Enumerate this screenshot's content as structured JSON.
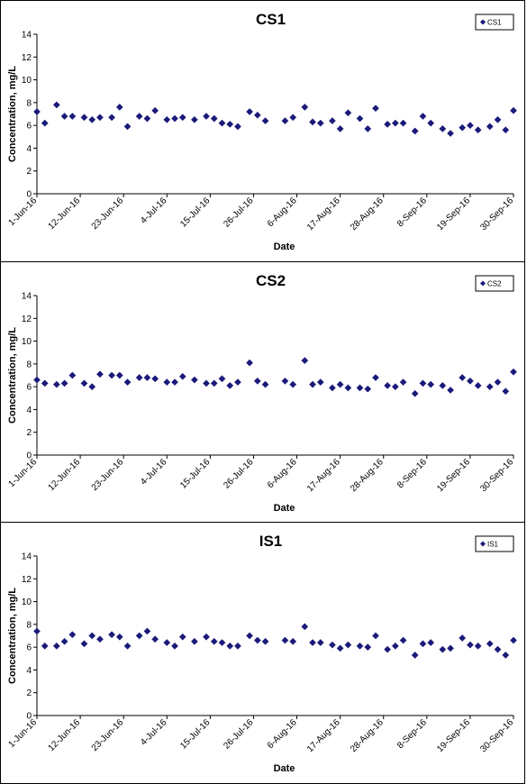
{
  "chart_data": [
    {
      "type": "scatter",
      "title": "CS1",
      "xlabel": "Date",
      "ylabel": "Concentration, mg/L",
      "ylim": [
        0,
        14
      ],
      "yticks": [
        0,
        2,
        4,
        6,
        8,
        10,
        12,
        14
      ],
      "xlim": [
        "2016-06-01",
        "2016-09-30"
      ],
      "xticks": [
        "1-Jun-16",
        "12-Jun-16",
        "23-Jun-16",
        "4-Jul-16",
        "15-Jul-16",
        "26-Jul-16",
        "6-Aug-16",
        "17-Aug-16",
        "28-Aug-16",
        "8-Sep-16",
        "19-Sep-16",
        "30-Sep-16"
      ],
      "grid": false,
      "legend": "top-right",
      "color": "#1a1a7a",
      "series": [
        {
          "name": "CS1",
          "x": [
            "2016-06-01",
            "2016-06-03",
            "2016-06-06",
            "2016-06-08",
            "2016-06-10",
            "2016-06-13",
            "2016-06-15",
            "2016-06-17",
            "2016-06-20",
            "2016-06-22",
            "2016-06-24",
            "2016-06-27",
            "2016-06-29",
            "2016-07-01",
            "2016-07-04",
            "2016-07-06",
            "2016-07-08",
            "2016-07-11",
            "2016-07-14",
            "2016-07-16",
            "2016-07-18",
            "2016-07-20",
            "2016-07-22",
            "2016-07-25",
            "2016-07-27",
            "2016-07-29",
            "2016-08-03",
            "2016-08-05",
            "2016-08-08",
            "2016-08-10",
            "2016-08-12",
            "2016-08-15",
            "2016-08-17",
            "2016-08-19",
            "2016-08-22",
            "2016-08-24",
            "2016-08-26",
            "2016-08-29",
            "2016-08-31",
            "2016-09-02",
            "2016-09-05",
            "2016-09-07",
            "2016-09-09",
            "2016-09-12",
            "2016-09-14",
            "2016-09-17",
            "2016-09-19",
            "2016-09-21",
            "2016-09-24",
            "2016-09-26",
            "2016-09-28",
            "2016-09-30"
          ],
          "y": [
            7.2,
            6.2,
            7.8,
            6.8,
            6.8,
            6.7,
            6.5,
            6.7,
            6.7,
            7.6,
            5.9,
            6.8,
            6.6,
            7.3,
            6.5,
            6.6,
            6.7,
            6.5,
            6.8,
            6.6,
            6.2,
            6.1,
            5.9,
            7.2,
            6.9,
            6.4,
            6.4,
            6.7,
            7.6,
            6.3,
            6.2,
            6.4,
            5.7,
            7.1,
            6.6,
            5.7,
            7.5,
            6.1,
            6.2,
            6.2,
            5.5,
            6.8,
            6.2,
            5.7,
            5.3,
            5.8,
            6.0,
            5.6,
            5.9,
            6.5,
            5.6,
            7.3
          ]
        }
      ]
    },
    {
      "type": "scatter",
      "title": "CS2",
      "xlabel": "Date",
      "ylabel": "Concentration, mg/L",
      "ylim": [
        0,
        14
      ],
      "yticks": [
        0,
        2,
        4,
        6,
        8,
        10,
        12,
        14
      ],
      "xlim": [
        "2016-06-01",
        "2016-09-30"
      ],
      "xticks": [
        "1-Jun-16",
        "12-Jun-16",
        "23-Jun-16",
        "4-Jul-16",
        "15-Jul-16",
        "26-Jul-16",
        "6-Aug-16",
        "17-Aug-16",
        "28-Aug-16",
        "8-Sep-16",
        "19-Sep-16",
        "30-Sep-16"
      ],
      "grid": false,
      "legend": "top-right",
      "color": "#1a1a7a",
      "series": [
        {
          "name": "CS2",
          "x": [
            "2016-06-01",
            "2016-06-03",
            "2016-06-06",
            "2016-06-08",
            "2016-06-10",
            "2016-06-13",
            "2016-06-15",
            "2016-06-17",
            "2016-06-20",
            "2016-06-22",
            "2016-06-24",
            "2016-06-27",
            "2016-06-29",
            "2016-07-01",
            "2016-07-04",
            "2016-07-06",
            "2016-07-08",
            "2016-07-11",
            "2016-07-14",
            "2016-07-16",
            "2016-07-18",
            "2016-07-20",
            "2016-07-22",
            "2016-07-25",
            "2016-07-27",
            "2016-07-29",
            "2016-08-03",
            "2016-08-05",
            "2016-08-08",
            "2016-08-10",
            "2016-08-12",
            "2016-08-15",
            "2016-08-17",
            "2016-08-19",
            "2016-08-22",
            "2016-08-24",
            "2016-08-26",
            "2016-08-29",
            "2016-08-31",
            "2016-09-02",
            "2016-09-05",
            "2016-09-07",
            "2016-09-09",
            "2016-09-12",
            "2016-09-14",
            "2016-09-17",
            "2016-09-19",
            "2016-09-21",
            "2016-09-24",
            "2016-09-26",
            "2016-09-28",
            "2016-09-30"
          ],
          "y": [
            6.6,
            6.3,
            6.2,
            6.3,
            7.0,
            6.3,
            6.0,
            7.1,
            7.0,
            7.0,
            6.4,
            6.8,
            6.8,
            6.7,
            6.4,
            6.4,
            6.9,
            6.6,
            6.3,
            6.3,
            6.7,
            6.1,
            6.4,
            8.1,
            6.5,
            6.2,
            6.5,
            6.2,
            8.3,
            6.2,
            6.4,
            5.9,
            6.2,
            5.9,
            5.9,
            5.8,
            6.8,
            6.1,
            6.0,
            6.4,
            5.4,
            6.3,
            6.2,
            6.1,
            5.7,
            6.8,
            6.5,
            6.1,
            6.0,
            6.4,
            5.6,
            7.3
          ]
        }
      ]
    },
    {
      "type": "scatter",
      "title": "IS1",
      "xlabel": "Date",
      "ylabel": "Concentration, mg/L",
      "ylim": [
        0,
        14
      ],
      "yticks": [
        0,
        2,
        4,
        6,
        8,
        10,
        12,
        14
      ],
      "xlim": [
        "2016-06-01",
        "2016-09-30"
      ],
      "xticks": [
        "1-Jun-16",
        "12-Jun-16",
        "23-Jun-16",
        "4-Jul-16",
        "15-Jul-16",
        "26-Jul-16",
        "6-Aug-16",
        "17-Aug-16",
        "28-Aug-16",
        "8-Sep-16",
        "19-Sep-16",
        "30-Sep-16"
      ],
      "grid": false,
      "legend": "top-right",
      "color": "#1a1a7a",
      "series": [
        {
          "name": "IS1",
          "x": [
            "2016-06-01",
            "2016-06-03",
            "2016-06-06",
            "2016-06-08",
            "2016-06-10",
            "2016-06-13",
            "2016-06-15",
            "2016-06-17",
            "2016-06-20",
            "2016-06-22",
            "2016-06-24",
            "2016-06-27",
            "2016-06-29",
            "2016-07-01",
            "2016-07-04",
            "2016-07-06",
            "2016-07-08",
            "2016-07-11",
            "2016-07-14",
            "2016-07-16",
            "2016-07-18",
            "2016-07-20",
            "2016-07-22",
            "2016-07-25",
            "2016-07-27",
            "2016-07-29",
            "2016-08-03",
            "2016-08-05",
            "2016-08-08",
            "2016-08-10",
            "2016-08-12",
            "2016-08-15",
            "2016-08-17",
            "2016-08-19",
            "2016-08-22",
            "2016-08-24",
            "2016-08-26",
            "2016-08-29",
            "2016-08-31",
            "2016-09-02",
            "2016-09-05",
            "2016-09-07",
            "2016-09-09",
            "2016-09-12",
            "2016-09-14",
            "2016-09-17",
            "2016-09-19",
            "2016-09-21",
            "2016-09-24",
            "2016-09-26",
            "2016-09-28",
            "2016-09-30"
          ],
          "y": [
            7.4,
            6.1,
            6.1,
            6.5,
            7.1,
            6.3,
            7.0,
            6.7,
            7.1,
            6.9,
            6.1,
            7.0,
            7.4,
            6.7,
            6.4,
            6.1,
            6.9,
            6.5,
            6.9,
            6.5,
            6.4,
            6.1,
            6.1,
            7.0,
            6.6,
            6.5,
            6.6,
            6.5,
            7.8,
            6.4,
            6.4,
            6.2,
            5.9,
            6.2,
            6.1,
            6.0,
            7.0,
            5.8,
            6.1,
            6.6,
            5.3,
            6.3,
            6.4,
            5.8,
            5.9,
            6.8,
            6.2,
            6.1,
            6.3,
            5.8,
            5.3,
            6.6
          ]
        }
      ]
    }
  ]
}
